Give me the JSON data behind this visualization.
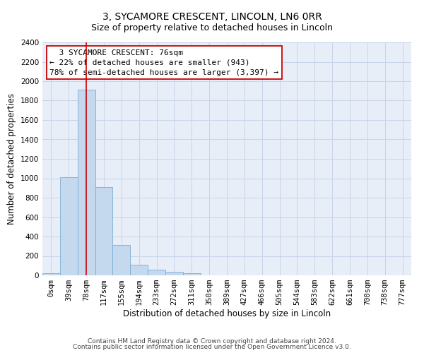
{
  "title_line1": "3, SYCAMORE CRESCENT, LINCOLN, LN6 0RR",
  "title_line2": "Size of property relative to detached houses in Lincoln",
  "xlabel": "Distribution of detached houses by size in Lincoln",
  "ylabel": "Number of detached properties",
  "bar_color": "#c5d9ee",
  "bar_edge_color": "#7aadd4",
  "grid_color": "#c8d4e8",
  "background_color": "#e8eef8",
  "categories": [
    "0sqm",
    "39sqm",
    "78sqm",
    "117sqm",
    "155sqm",
    "194sqm",
    "233sqm",
    "272sqm",
    "311sqm",
    "350sqm",
    "389sqm",
    "427sqm",
    "466sqm",
    "505sqm",
    "544sqm",
    "583sqm",
    "622sqm",
    "661sqm",
    "700sqm",
    "738sqm",
    "777sqm"
  ],
  "bar_heights": [
    20,
    1010,
    1910,
    910,
    310,
    110,
    55,
    35,
    20,
    0,
    0,
    0,
    0,
    0,
    0,
    0,
    0,
    0,
    0,
    0,
    0
  ],
  "ylim": [
    0,
    2400
  ],
  "yticks": [
    0,
    200,
    400,
    600,
    800,
    1000,
    1200,
    1400,
    1600,
    1800,
    2000,
    2200,
    2400
  ],
  "property_line_bin": 2,
  "annotation_text": "  3 SYCAMORE CRESCENT: 76sqm\n← 22% of detached houses are smaller (943)\n78% of semi-detached houses are larger (3,397) →",
  "annotation_box_color": "#ffffff",
  "annotation_border_color": "#cc0000",
  "red_line_color": "#cc0000",
  "footer_line1": "Contains HM Land Registry data © Crown copyright and database right 2024.",
  "footer_line2": "Contains public sector information licensed under the Open Government Licence v3.0.",
  "title_fontsize": 10,
  "subtitle_fontsize": 9,
  "axis_label_fontsize": 8.5,
  "tick_fontsize": 7.5,
  "annotation_fontsize": 8,
  "footer_fontsize": 6.5
}
